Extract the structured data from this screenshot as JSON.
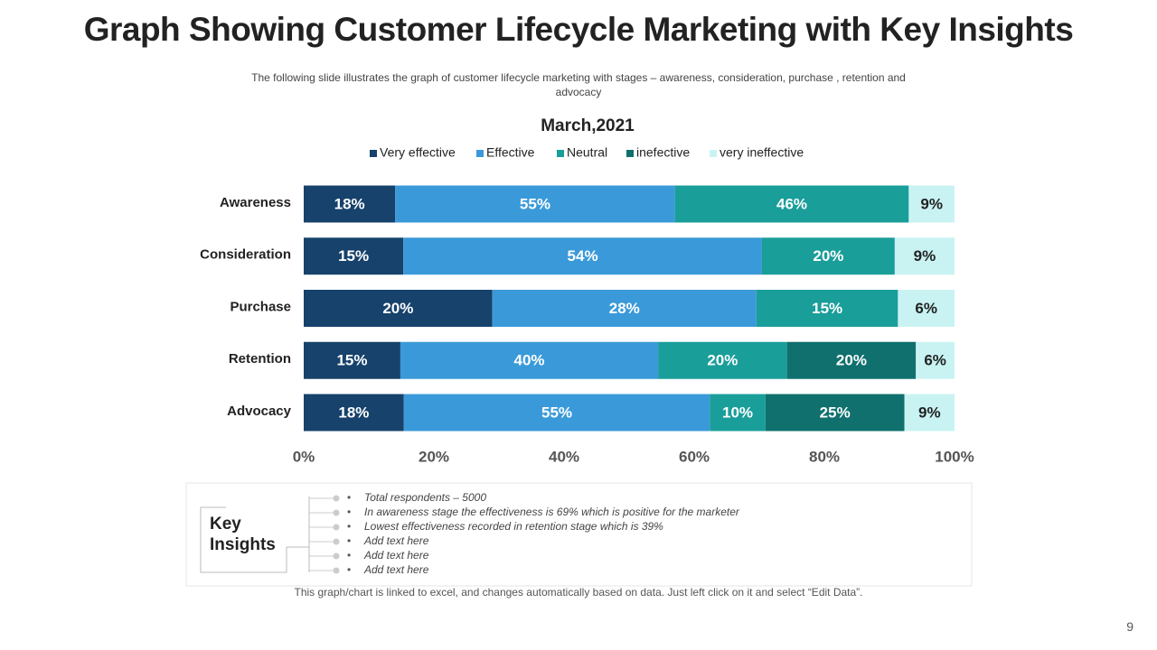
{
  "slide": {
    "title": "Graph Showing Customer Lifecycle Marketing with Key Insights",
    "subtitle": "The following  slide illustrates the graph of customer lifecycle marketing with stages – awareness,  consideration, purchase ,  retention and advocacy",
    "insights_heading": "Key Insights",
    "insights": [
      "Total respondents  – 5000",
      "In awareness  stage the effectiveness is 69% which  is positive for the marketer",
      "Lowest  effectiveness recorded  in retention stage which is 39%",
      "Add text here",
      "Add text here",
      "Add text here"
    ],
    "note": "This graph/chart is linked to excel, and changes automatically based on data. Just left click on it and select “Edit Data”.",
    "page_number": "9"
  },
  "chart_data": {
    "type": "bar",
    "orientation": "horizontal",
    "stack": "percent",
    "title": "March,2021",
    "categories": [
      "Awareness",
      "Consideration",
      "Purchase",
      "Retention",
      "Advocacy"
    ],
    "series": [
      {
        "name": "Very effective",
        "color": "#16426b",
        "label_color": "#ffffff",
        "values": [
          18,
          15,
          20,
          15,
          18
        ],
        "value_labels": [
          "18%",
          "15%",
          "20%",
          "15%",
          "18%"
        ]
      },
      {
        "name": "Effective",
        "color": "#3a9ad9",
        "label_color": "#ffffff",
        "values": [
          55,
          54,
          28,
          40,
          55
        ],
        "value_labels": [
          "55%",
          "54%",
          "28%",
          "40%",
          "55%"
        ]
      },
      {
        "name": "Neutral",
        "color": "#1a9e9a",
        "label_color": "#ffffff",
        "values": [
          46,
          20,
          15,
          20,
          10
        ],
        "value_labels": [
          "46%",
          "20%",
          "15%",
          "20%",
          "10%"
        ]
      },
      {
        "name": "inefective",
        "color": "#0f706e",
        "label_color": "#ffffff",
        "values": [
          null,
          null,
          null,
          20,
          25
        ],
        "value_labels": [
          null,
          null,
          null,
          "20%",
          "25%"
        ]
      },
      {
        "name": "very ineffective",
        "color": "#c9f3f3",
        "label_color": "#222222",
        "values": [
          9,
          9,
          6,
          6,
          9
        ],
        "value_labels": [
          "9%",
          "9%",
          "6%",
          "6%",
          "9%"
        ]
      }
    ],
    "xlim": [
      0,
      100
    ],
    "xticks": [
      {
        "value": 0,
        "label": "0%"
      },
      {
        "value": 20,
        "label": "20%"
      },
      {
        "value": 40,
        "label": "40%"
      },
      {
        "value": 60,
        "label": "60%"
      },
      {
        "value": 80,
        "label": "80%"
      },
      {
        "value": 100,
        "label": "100%"
      }
    ],
    "legend": "top"
  }
}
